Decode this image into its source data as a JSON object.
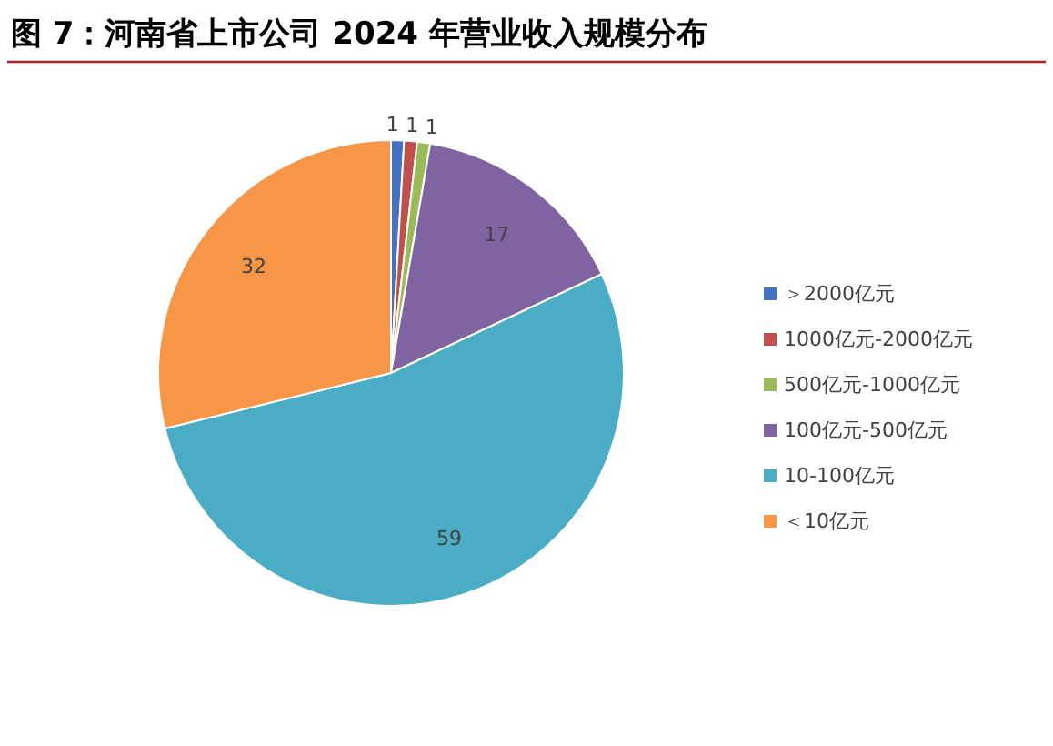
{
  "chart_data": {
    "type": "pie",
    "title": "图 7：河南省上市公司 2024 年营业收入规模分布",
    "categories": [
      "＞2000亿元",
      "1000亿元-2000亿元",
      "500亿元-1000亿元",
      "100亿元-500亿元",
      "10-100亿元",
      "＜10亿元"
    ],
    "values": [
      1,
      1,
      1,
      17,
      59,
      32
    ],
    "colors": [
      "#4472c4",
      "#c0504d",
      "#9bbb59",
      "#8064a2",
      "#4bacc6",
      "#f79646"
    ],
    "data_labels": true,
    "legend": "right"
  }
}
